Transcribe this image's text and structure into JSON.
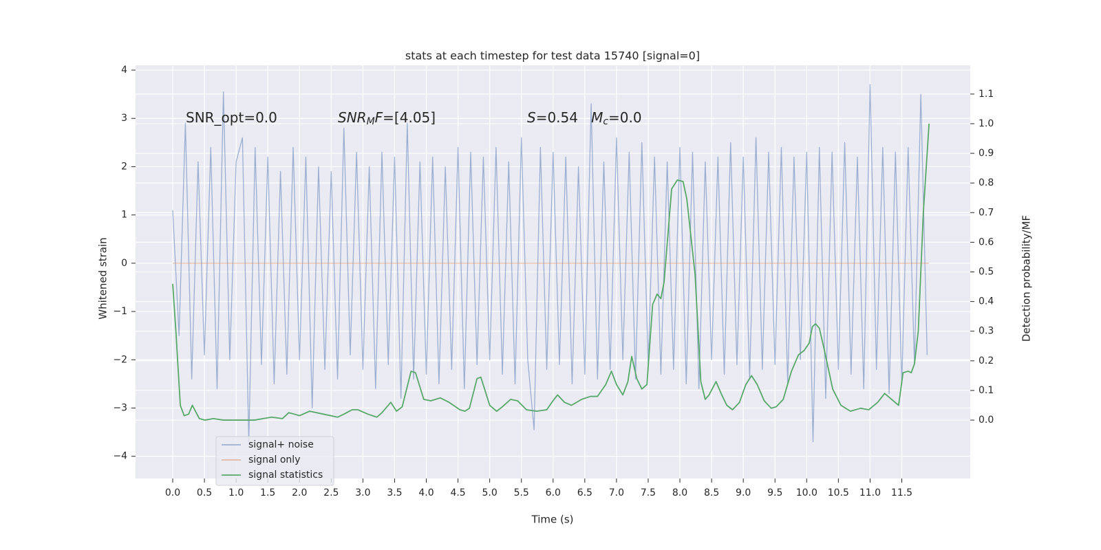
{
  "chart_data": {
    "type": "line",
    "title": "stats at each timestep for test data 15740 [signal=0]",
    "xlabel": "Time (s)",
    "ylabel": "Whitened strain",
    "y2label": "Detection probability/MF",
    "xlim": [
      -0.586,
      12.58
    ],
    "ylim": [
      -4.46,
      4.1
    ],
    "y2lim": [
      -0.197,
      1.197
    ],
    "xticks": [
      {
        "value": 0,
        "label": "0.0"
      },
      0.5,
      {
        "value": 1,
        "label": "1.0"
      },
      1.5,
      {
        "value": 2,
        "label": "2.0"
      },
      2.5,
      {
        "value": 3,
        "label": "3.0"
      },
      3.5,
      {
        "value": 4,
        "label": "4.0"
      },
      4.5,
      {
        "value": 5,
        "label": "5.0"
      },
      5.5,
      {
        "value": 6,
        "label": "6.0"
      },
      6.5,
      {
        "value": 7,
        "label": "7.0"
      },
      7.5,
      {
        "value": 8,
        "label": "8.0"
      },
      8.5,
      {
        "value": 9,
        "label": "9.0"
      },
      9.5,
      {
        "value": 10,
        "label": "10.0"
      },
      10.5,
      {
        "value": 11,
        "label": "11.0"
      },
      11.5
    ],
    "yticks": [
      {
        "value": -4,
        "label": "−4"
      },
      {
        "value": -3,
        "label": "−3"
      },
      {
        "value": -2,
        "label": "−2"
      },
      {
        "value": -1,
        "label": "−1"
      },
      0,
      1,
      2,
      3,
      4
    ],
    "y2ticks": [
      {
        "value": 0,
        "label": "0.0"
      },
      0.1,
      0.2,
      0.3,
      0.4,
      0.5,
      0.6,
      0.7,
      0.8,
      0.9,
      {
        "value": 1,
        "label": "1.0"
      },
      1.1
    ],
    "grid": true,
    "legend": "lower left",
    "annotations": [
      [
        {
          "text": "SNR_opt=0.0",
          "style": "normal"
        }
      ],
      [
        {
          "text": "SNR",
          "style": "italic"
        },
        {
          "text": "M",
          "style": "italic-sub"
        },
        {
          "text": "F",
          "style": "italic"
        },
        {
          "text": "=[4.05]",
          "style": "normal"
        }
      ],
      [
        {
          "text": "S",
          "style": "italic"
        },
        {
          "text": "=0.54   ",
          "style": "normal"
        },
        {
          "text": "M",
          "style": "italic"
        },
        {
          "text": "c",
          "style": "italic-sub"
        },
        {
          "text": "=0.0",
          "style": "normal"
        }
      ]
    ],
    "series": [
      {
        "name": "signal+ noise",
        "color": "#4c72b0",
        "alpha": 0.5,
        "axis": "y",
        "x": [
          0.0,
          0.1,
          0.2,
          0.3,
          0.4,
          0.5,
          0.6,
          0.7,
          0.8,
          0.9,
          1.0,
          1.1,
          1.2,
          1.3,
          1.4,
          1.5,
          1.6,
          1.7,
          1.8,
          1.9,
          2.0,
          2.1,
          2.2,
          2.3,
          2.4,
          2.5,
          2.6,
          2.7,
          2.8,
          2.9,
          3.0,
          3.1,
          3.2,
          3.3,
          3.4,
          3.5,
          3.6,
          3.7,
          3.8,
          3.9,
          4.0,
          4.1,
          4.2,
          4.3,
          4.4,
          4.5,
          4.6,
          4.7,
          4.8,
          4.9,
          5.0,
          5.1,
          5.2,
          5.3,
          5.4,
          5.5,
          5.6,
          5.7,
          5.8,
          5.9,
          6.0,
          6.1,
          6.2,
          6.3,
          6.4,
          6.5,
          6.6,
          6.7,
          6.8,
          6.9,
          7.0,
          7.1,
          7.2,
          7.3,
          7.4,
          7.5,
          7.6,
          7.7,
          7.8,
          7.9,
          8.0,
          8.1,
          8.2,
          8.3,
          8.4,
          8.5,
          8.6,
          8.7,
          8.8,
          8.9,
          9.0,
          9.1,
          9.2,
          9.3,
          9.4,
          9.5,
          9.6,
          9.7,
          9.8,
          9.9,
          10.0,
          10.1,
          10.2,
          10.3,
          10.4,
          10.5,
          10.6,
          10.7,
          10.8,
          10.9,
          11.0,
          11.1,
          11.2,
          11.3,
          11.4,
          11.5,
          11.6,
          11.7,
          11.8,
          11.9
        ],
        "values": [
          1.1,
          -1.5,
          2.9,
          -2.4,
          2.1,
          -1.9,
          2.4,
          -2.6,
          3.55,
          -2.0,
          2.1,
          2.6,
          -3.7,
          2.4,
          -2.1,
          2.2,
          -2.5,
          1.9,
          -2.3,
          2.4,
          -2.0,
          2.2,
          -3.0,
          2.0,
          -2.2,
          1.9,
          -2.4,
          2.8,
          -1.9,
          2.3,
          -2.2,
          2.0,
          -2.6,
          2.3,
          -2.1,
          2.2,
          -2.8,
          2.9,
          -2.4,
          2.1,
          -2.3,
          2.2,
          -2.5,
          2.0,
          -2.2,
          2.4,
          -2.6,
          2.3,
          -2.1,
          2.2,
          -2.0,
          2.4,
          -2.3,
          2.1,
          -2.5,
          2.6,
          -2.0,
          -3.45,
          2.4,
          -2.2,
          2.3,
          -2.1,
          2.2,
          -2.5,
          2.0,
          -2.3,
          3.3,
          -2.4,
          2.1,
          -2.2,
          2.6,
          -2.0,
          2.3,
          -2.4,
          2.5,
          -2.1,
          2.2,
          -2.3,
          2.1,
          -2.2,
          2.4,
          -2.5,
          2.3,
          -2.6,
          2.1,
          -2.0,
          2.2,
          -2.3,
          2.5,
          -2.1,
          2.2,
          -2.4,
          2.6,
          -2.2,
          2.3,
          -2.1,
          2.4,
          -2.5,
          2.2,
          -2.0,
          2.3,
          -3.7,
          2.4,
          -2.8,
          2.3,
          -2.2,
          2.5,
          -2.3,
          2.2,
          -2.6,
          3.7,
          -2.2,
          2.4,
          -2.7,
          2.3,
          -2.5,
          2.4,
          -2.1,
          3.5,
          -1.9
        ]
      },
      {
        "name": "signal only",
        "color": "#dd8452",
        "alpha": 0.5,
        "axis": "y",
        "x": [
          0.0,
          11.93
        ],
        "values": [
          0,
          0
        ]
      },
      {
        "name": "signal statistics",
        "color": "#55a868",
        "alpha": 1,
        "axis": "y2",
        "x": [
          0.0,
          0.05,
          0.12,
          0.18,
          0.25,
          0.31,
          0.42,
          0.51,
          0.64,
          0.8,
          1.02,
          1.29,
          1.56,
          1.73,
          1.83,
          1.92,
          2.0,
          2.16,
          2.38,
          2.6,
          2.7,
          2.83,
          2.92,
          3.08,
          3.22,
          3.3,
          3.44,
          3.53,
          3.62,
          3.76,
          3.83,
          3.96,
          4.07,
          4.22,
          4.36,
          4.53,
          4.61,
          4.68,
          4.8,
          4.86,
          5.0,
          5.11,
          5.2,
          5.33,
          5.44,
          5.58,
          5.74,
          5.9,
          5.98,
          6.07,
          6.18,
          6.29,
          6.45,
          6.59,
          6.7,
          6.83,
          6.92,
          7.0,
          7.1,
          7.18,
          7.24,
          7.32,
          7.4,
          7.48,
          7.57,
          7.64,
          7.7,
          7.75,
          7.87,
          7.96,
          8.05,
          8.11,
          8.24,
          8.33,
          8.4,
          8.46,
          8.57,
          8.66,
          8.74,
          8.83,
          8.94,
          9.04,
          9.13,
          9.22,
          9.33,
          9.44,
          9.52,
          9.63,
          9.76,
          9.87,
          9.96,
          10.04,
          10.09,
          10.14,
          10.2,
          10.28,
          10.41,
          10.54,
          10.69,
          10.85,
          10.98,
          11.12,
          11.23,
          11.34,
          11.45,
          11.52,
          11.6,
          11.65,
          11.7,
          11.76,
          11.84,
          11.93
        ],
        "values": [
          0.46,
          0.3,
          0.05,
          0.015,
          0.02,
          0.05,
          0.005,
          0.0,
          0.005,
          0.0,
          0.0,
          0.0,
          0.01,
          0.005,
          0.025,
          0.02,
          0.015,
          0.03,
          0.02,
          0.01,
          0.02,
          0.035,
          0.035,
          0.02,
          0.01,
          0.025,
          0.06,
          0.03,
          0.045,
          0.165,
          0.16,
          0.07,
          0.065,
          0.075,
          0.06,
          0.035,
          0.03,
          0.04,
          0.14,
          0.145,
          0.05,
          0.03,
          0.045,
          0.07,
          0.065,
          0.035,
          0.03,
          0.035,
          0.06,
          0.085,
          0.06,
          0.05,
          0.07,
          0.08,
          0.08,
          0.12,
          0.165,
          0.12,
          0.085,
          0.13,
          0.215,
          0.14,
          0.105,
          0.12,
          0.39,
          0.425,
          0.41,
          0.465,
          0.78,
          0.81,
          0.805,
          0.745,
          0.49,
          0.13,
          0.07,
          0.085,
          0.13,
          0.085,
          0.05,
          0.035,
          0.06,
          0.12,
          0.15,
          0.12,
          0.065,
          0.04,
          0.045,
          0.07,
          0.165,
          0.22,
          0.235,
          0.26,
          0.315,
          0.325,
          0.31,
          0.235,
          0.105,
          0.05,
          0.03,
          0.04,
          0.035,
          0.06,
          0.09,
          0.07,
          0.05,
          0.16,
          0.165,
          0.16,
          0.19,
          0.3,
          0.7,
          1.0
        ]
      }
    ]
  }
}
